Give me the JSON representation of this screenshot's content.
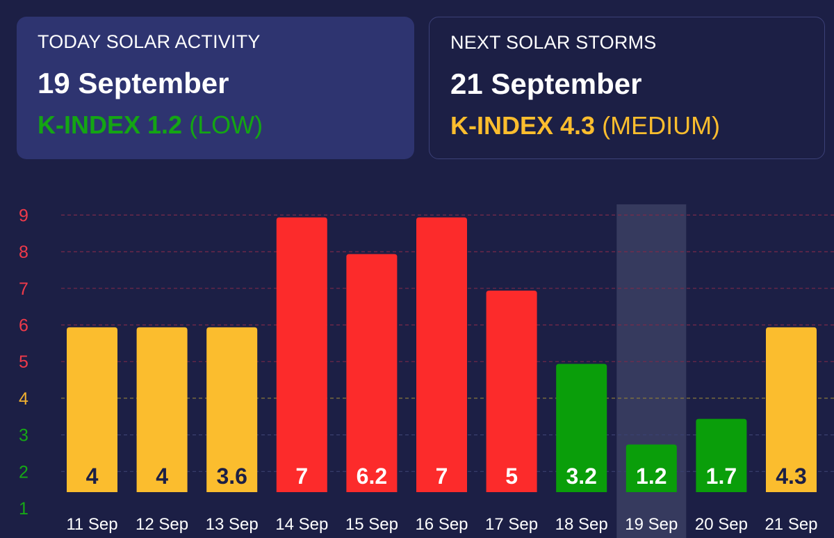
{
  "today_card": {
    "label": "TODAY SOLAR ACTIVITY",
    "date": "19 September",
    "index_value": "K-INDEX 1.2",
    "index_level": "(LOW)",
    "color": "#14a514"
  },
  "next_card": {
    "label": "NEXT SOLAR STORMS",
    "date": "21 September",
    "index_value": "K-INDEX 4.3",
    "index_level": "(MEDIUM)",
    "color": "#fbbd2e"
  },
  "colors": {
    "background": "#1c1f45",
    "low": "#0a9e0a",
    "medium": "#fbbd2e",
    "high": "#fc2b2b",
    "highlight": "#363a5e"
  },
  "chart_data": {
    "type": "bar",
    "categories": [
      "11 Sep",
      "12 Sep",
      "13 Sep",
      "14 Sep",
      "15 Sep",
      "16 Sep",
      "17 Sep",
      "18 Sep",
      "19 Sep",
      "20 Sep",
      "21 Sep"
    ],
    "values": [
      4,
      4,
      3.6,
      7,
      6.2,
      7,
      5,
      3.2,
      1.2,
      1.7,
      4.3
    ],
    "value_labels": [
      "4",
      "4",
      "3.6",
      "7",
      "6.2",
      "7",
      "5",
      "3.2",
      "1.2",
      "1.7",
      "4.3"
    ],
    "bar_heights": [
      4.5,
      4.5,
      4.5,
      7.5,
      6.5,
      7.5,
      5.5,
      3.5,
      1.3,
      2.0,
      4.5
    ],
    "levels": [
      "medium",
      "medium",
      "medium",
      "high",
      "high",
      "high",
      "high",
      "low",
      "low",
      "low",
      "medium"
    ],
    "highlighted_category": "19 Sep",
    "y_ticks": [
      "1",
      "2",
      "3",
      "4",
      "5",
      "6",
      "7",
      "8",
      "9"
    ],
    "y_tick_levels": [
      "low",
      "low",
      "low",
      "medium",
      "high",
      "high",
      "high",
      "high",
      "high"
    ],
    "ylim": [
      1,
      9
    ],
    "grid": true,
    "title": "",
    "xlabel": "",
    "ylabel": ""
  }
}
